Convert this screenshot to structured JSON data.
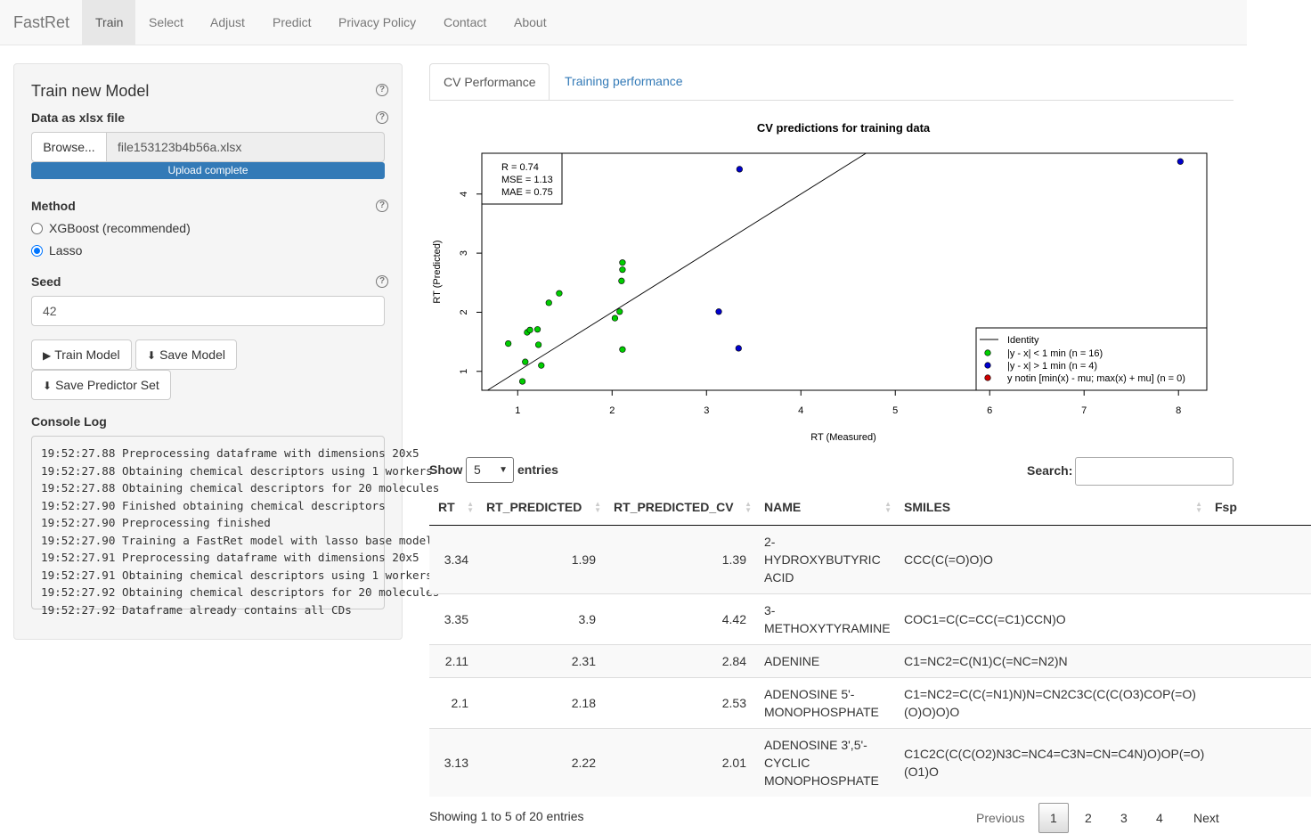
{
  "navbar": {
    "brand": "FastRet",
    "items": [
      "Train",
      "Select",
      "Adjust",
      "Predict",
      "Privacy Policy",
      "Contact",
      "About"
    ]
  },
  "sidebar": {
    "title": "Train new Model",
    "data_label": "Data as xlsx file",
    "browse_label": "Browse...",
    "file_name": "file153123b4b56a.xlsx",
    "upload_status": "Upload complete",
    "method_label": "Method",
    "methods": [
      "XGBoost (recommended)",
      "Lasso"
    ],
    "selected_method": "Lasso",
    "seed_label": "Seed",
    "seed_value": "42",
    "train_button": "Train Model",
    "save_model_button": "Save Model",
    "save_predictor_button": "Save Predictor Set",
    "console_label": "Console Log",
    "console_text": "19:52:27.88 Preprocessing dataframe with dimensions 20x5\n19:52:27.88 Obtaining chemical descriptors using 1 workers\n19:52:27.88 Obtaining chemical descriptors for 20 molecules\n19:52:27.90 Finished obtaining chemical descriptors\n19:52:27.90 Preprocessing finished\n19:52:27.90 Training a FastRet model with lasso base model\n19:52:27.91 Preprocessing dataframe with dimensions 20x5\n19:52:27.91 Obtaining chemical descriptors using 1 workers\n19:52:27.92 Obtaining chemical descriptors for 20 molecules\n19:52:27.92 Dataframe already contains all CDs"
  },
  "tabs": [
    "CV Performance",
    "Training performance"
  ],
  "chart_data": {
    "type": "scatter",
    "title": "CV predictions for training data",
    "xlabel": "RT (Measured)",
    "ylabel": "RT (Predicted)",
    "xlim": [
      0.62,
      8.3
    ],
    "ylim": [
      0.68,
      4.69
    ],
    "x_ticks": [
      1,
      2,
      3,
      4,
      5,
      6,
      7,
      8
    ],
    "y_ticks": [
      1,
      2,
      3,
      4
    ],
    "stats": [
      "R = 0.74",
      "MSE = 1.13",
      "MAE = 0.75"
    ],
    "legend": {
      "position": "bottom-right",
      "entries": [
        {
          "label": "Identity",
          "kind": "line",
          "color": "#000000"
        },
        {
          "label": "|y - x| < 1 min (n = 16)",
          "kind": "point",
          "color": "#00cd00"
        },
        {
          "label": "|y - x| > 1 min (n = 4)",
          "kind": "point",
          "color": "#0000cd"
        },
        {
          "label": "y notin [min(x) - mu; max(x) + mu] (n = 0)",
          "kind": "point",
          "color": "#cd0000"
        }
      ]
    },
    "series": [
      {
        "color": "#00cd00",
        "points": [
          [
            0.9,
            1.47
          ],
          [
            1.05,
            0.83
          ],
          [
            1.08,
            1.16
          ],
          [
            1.1,
            1.66
          ],
          [
            1.13,
            1.7
          ],
          [
            1.21,
            1.71
          ],
          [
            1.22,
            1.45
          ],
          [
            1.25,
            1.1
          ],
          [
            1.33,
            2.16
          ],
          [
            1.44,
            2.32
          ],
          [
            2.03,
            1.9
          ],
          [
            2.08,
            2.01
          ],
          [
            2.1,
            2.53
          ],
          [
            2.11,
            1.37
          ],
          [
            2.11,
            2.72
          ],
          [
            2.11,
            2.84
          ]
        ]
      },
      {
        "color": "#0000cd",
        "points": [
          [
            3.13,
            2.01
          ],
          [
            3.34,
            1.39
          ],
          [
            3.35,
            4.42
          ],
          [
            8.02,
            4.55
          ]
        ]
      }
    ]
  },
  "table": {
    "show_label": "Show",
    "entries_value": "5",
    "entries_label": "entries",
    "search_label": "Search:",
    "columns": [
      "RT",
      "RT_PREDICTED",
      "RT_PREDICTED_CV",
      "NAME",
      "SMILES",
      "Fsp"
    ],
    "rows": [
      [
        "3.34",
        "1.99",
        "1.39",
        "2-HYDROXYBUTYRIC ACID",
        "CCC(C(=O)O)O"
      ],
      [
        "3.35",
        "3.9",
        "4.42",
        "3-METHOXYTYRAMINE",
        "COC1=C(C=CC(=C1)CCN)O"
      ],
      [
        "2.11",
        "2.31",
        "2.84",
        "ADENINE",
        "C1=NC2=C(N1)C(=NC=N2)N"
      ],
      [
        "2.1",
        "2.18",
        "2.53",
        "ADENOSINE 5'-MONOPHOSPHATE",
        "C1=NC2=C(C(=N1)N)N=CN2C3C(C(C(O3)COP(=O)(O)O)O)O"
      ],
      [
        "3.13",
        "2.22",
        "2.01",
        "ADENOSINE 3',5'-CYCLIC MONOPHOSPHATE",
        "C1C2C(C(C(O2)N3C=NC4=C3N=CN=C4N)O)OP(=O)(O1)O"
      ]
    ],
    "info": "Showing 1 to 5 of 20 entries",
    "pagination": {
      "previous": "Previous",
      "pages": [
        "1",
        "2",
        "3",
        "4"
      ],
      "next": "Next",
      "current": "1"
    }
  }
}
